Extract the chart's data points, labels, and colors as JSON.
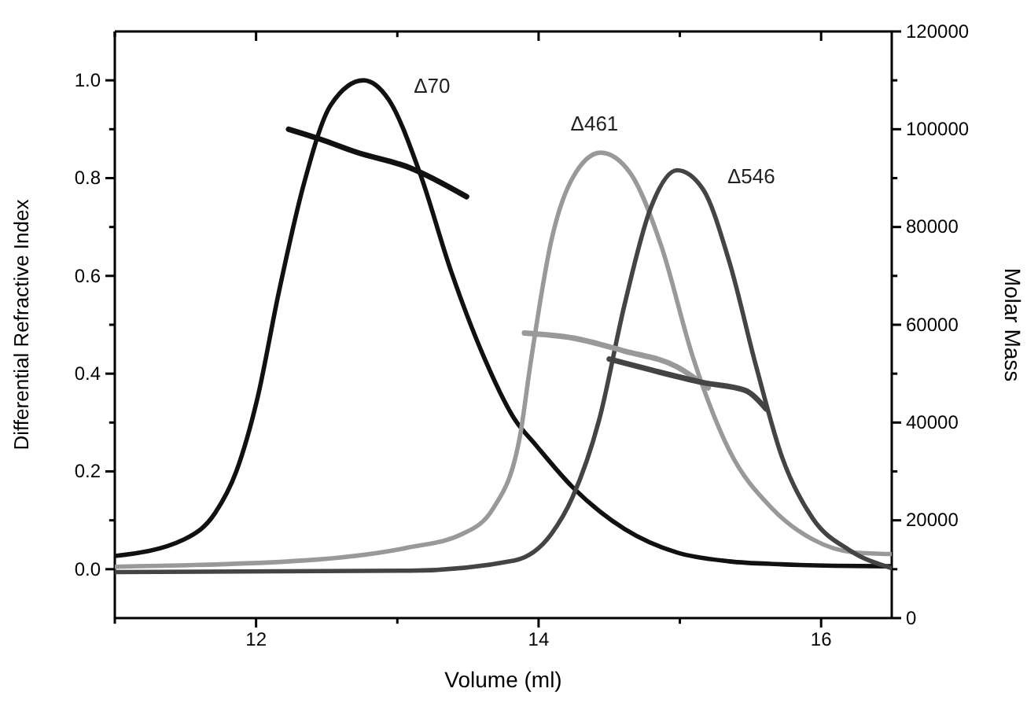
{
  "chart_data": {
    "type": "line",
    "xlabel": "Volume (ml)",
    "ylabel": "Differential Refractive Index",
    "y2label": "Molar Mass",
    "xlim": [
      11,
      16.5
    ],
    "ylim": [
      -0.1,
      1.1
    ],
    "y2lim": [
      0,
      120000
    ],
    "xticks": [
      {
        "value": 11,
        "label": null
      },
      12,
      {
        "value": 13,
        "label": null
      },
      14,
      {
        "value": 15,
        "label": null
      },
      16
    ],
    "yticks": [
      {
        "value": 0,
        "label": "0.0"
      },
      {
        "value": 0.1,
        "label": null
      },
      {
        "value": 0.2,
        "label": "0.2"
      },
      {
        "value": 0.3,
        "label": null
      },
      {
        "value": 0.4,
        "label": "0.4"
      },
      {
        "value": 0.5,
        "label": null
      },
      {
        "value": 0.6,
        "label": "0.6"
      },
      {
        "value": 0.7,
        "label": null
      },
      {
        "value": 0.8,
        "label": "0.8"
      },
      {
        "value": 0.9,
        "label": null
      },
      {
        "value": 1,
        "label": "1.0"
      }
    ],
    "y2ticks": [
      0,
      {
        "value": 10000,
        "label": null
      },
      20000,
      {
        "value": 30000,
        "label": null
      },
      40000,
      {
        "value": 50000,
        "label": null
      },
      60000,
      {
        "value": 70000,
        "label": null
      },
      80000,
      {
        "value": 90000,
        "label": null
      },
      100000,
      {
        "value": 110000,
        "label": null
      },
      120000
    ],
    "grid": false,
    "series": [
      {
        "name": "Δ70",
        "color": "#111111",
        "x": [
          11.0,
          11.49,
          11.71,
          11.86,
          12.01,
          12.16,
          12.34,
          12.53,
          12.76,
          12.94,
          13.16,
          13.38,
          13.61,
          13.83,
          13.98,
          14.24,
          14.61,
          14.98,
          15.35,
          15.72,
          16.09,
          16.5
        ],
        "values": [
          0.027,
          0.061,
          0.115,
          0.2,
          0.35,
          0.565,
          0.79,
          0.95,
          1.0,
          0.96,
          0.81,
          0.61,
          0.436,
          0.307,
          0.254,
          0.168,
          0.082,
          0.034,
          0.016,
          0.01,
          0.007,
          0.006
        ]
      },
      {
        "name": "Δ461",
        "color": "#999999",
        "x": [
          11.0,
          12.35,
          13.09,
          13.46,
          13.68,
          13.87,
          13.94,
          14.09,
          14.24,
          14.44,
          14.65,
          14.87,
          15.09,
          15.35,
          15.65,
          15.94,
          16.24,
          16.5
        ],
        "values": [
          0.005,
          0.018,
          0.045,
          0.072,
          0.125,
          0.275,
          0.415,
          0.672,
          0.8,
          0.852,
          0.81,
          0.66,
          0.436,
          0.243,
          0.125,
          0.061,
          0.034,
          0.031
        ]
      },
      {
        "name": "Δ546",
        "color": "#444444",
        "x": [
          11.0,
          13.09,
          13.83,
          14.09,
          14.24,
          14.43,
          14.61,
          14.79,
          14.98,
          15.16,
          15.35,
          15.54,
          15.72,
          15.94,
          16.2,
          16.5
        ],
        "values": [
          -0.006,
          -0.003,
          0.018,
          0.072,
          0.147,
          0.307,
          0.543,
          0.736,
          0.816,
          0.779,
          0.629,
          0.415,
          0.232,
          0.104,
          0.039,
          0.002
        ]
      },
      {
        "color": "#111111",
        "axis": "y2",
        "x": [
          12.23,
          12.45,
          12.71,
          13.09,
          13.49
        ],
        "values": [
          100000,
          98000,
          95300,
          92100,
          86200
        ]
      },
      {
        "color": "#999999",
        "axis": "y2",
        "x": [
          13.9,
          14.24,
          14.61,
          14.98,
          15.2
        ],
        "values": [
          58300,
          57300,
          54600,
          51400,
          47100
        ]
      },
      {
        "color": "#444444",
        "axis": "y2",
        "x": [
          14.5,
          14.79,
          15.16,
          15.46,
          15.61
        ],
        "values": [
          53000,
          50800,
          48200,
          46600,
          42800
        ]
      }
    ]
  }
}
